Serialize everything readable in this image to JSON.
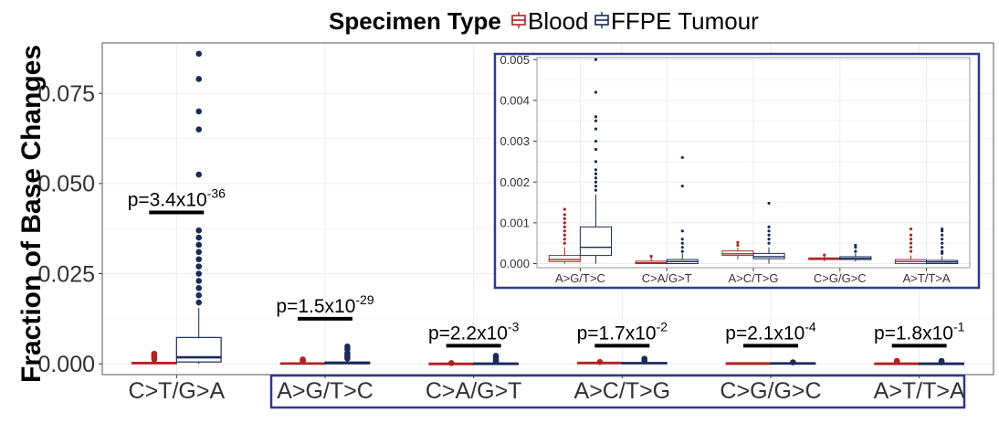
{
  "legend": {
    "title": "Specimen Type",
    "items": [
      {
        "label": "Blood",
        "color": "#b22222"
      },
      {
        "label": "FFPE Tumour",
        "color": "#1b2a5c"
      }
    ]
  },
  "colors": {
    "blood": "#b22222",
    "ffpe": "#1b2a5c",
    "highlight_box": "#2e3a8c",
    "grid": "#ebebeb",
    "panel_border": "#999999"
  },
  "chart_data": [
    {
      "type": "box",
      "ylabel": "Fraction of Base Changes",
      "ylim": [
        -0.003,
        0.089
      ],
      "yticks": [
        0.0,
        0.025,
        0.05,
        0.075
      ],
      "ytick_labels": [
        "0.000",
        "0.025",
        "0.050",
        "0.075"
      ],
      "categories": [
        "C>T/G>A",
        "A>G/T>C",
        "C>A/G>T",
        "A>C/T>G",
        "C>G/G>C",
        "A>T/T>A"
      ],
      "highlighted_categories": [
        "A>G/T>C",
        "C>A/G>T",
        "A>C/T>G",
        "C>G/G>C",
        "A>T/T>A"
      ],
      "pvalues": [
        {
          "base": "3.4x10",
          "exp": "-36"
        },
        {
          "base": "1.5x10",
          "exp": "-29"
        },
        {
          "base": "2.2x10",
          "exp": "-3"
        },
        {
          "base": "1.7x10",
          "exp": "-2"
        },
        {
          "base": "2.1x10",
          "exp": "-4"
        },
        {
          "base": "1.8x10",
          "exp": "-1"
        }
      ],
      "pvalue_prefix": "p=",
      "series": [
        {
          "name": "Blood",
          "boxes": [
            {
              "min": 0.0,
              "q1": 0.0,
              "median": 0.0002,
              "q3": 0.0004,
              "max": 0.0008,
              "outliers": [
                0.0012,
                0.0016,
                0.002,
                0.0024,
                0.0028
              ]
            },
            {
              "min": 0.0,
              "q1": 0.0,
              "median": 0.0001,
              "q3": 0.0002,
              "max": 0.0004,
              "outliers": [
                0.0006,
                0.0009,
                0.0012
              ]
            },
            {
              "min": 0.0,
              "q1": 0.0,
              "median": 2e-05,
              "q3": 6e-05,
              "max": 0.00015,
              "outliers": [
                0.0002
              ]
            },
            {
              "min": 0.0001,
              "q1": 0.0002,
              "median": 0.00025,
              "q3": 0.0003,
              "max": 0.0004,
              "outliers": [
                0.0005
              ]
            },
            {
              "min": 0.0,
              "q1": 0.0001,
              "median": 0.00012,
              "q3": 0.00014,
              "max": 0.00018,
              "outliers": []
            },
            {
              "min": 0.0,
              "q1": 0.0,
              "median": 5e-05,
              "q3": 0.0001,
              "max": 0.0002,
              "outliers": [
                0.0005,
                0.0008
              ]
            }
          ]
        },
        {
          "name": "FFPE Tumour",
          "boxes": [
            {
              "min": 0.0,
              "q1": 0.0005,
              "median": 0.0018,
              "q3": 0.0073,
              "max": 0.0155,
              "outliers": [
                0.017,
                0.019,
                0.021,
                0.023,
                0.025,
                0.027,
                0.029,
                0.031,
                0.033,
                0.035,
                0.037,
                0.0525,
                0.065,
                0.07,
                0.079,
                0.086
              ]
            },
            {
              "min": 0.0,
              "q1": 0.0,
              "median": 0.0002,
              "q3": 0.0005,
              "max": 0.0012,
              "outliers": [
                0.0015,
                0.002,
                0.0025,
                0.003,
                0.004,
                0.0048
              ]
            },
            {
              "min": 0.0,
              "q1": 0.0,
              "median": 5e-05,
              "q3": 0.0001,
              "max": 0.0003,
              "outliers": [
                0.0005,
                0.0008,
                0.0012,
                0.0018,
                0.0022
              ]
            },
            {
              "min": 0.0,
              "q1": 0.0001,
              "median": 0.0002,
              "q3": 0.0003,
              "max": 0.0005,
              "outliers": [
                0.0008,
                0.001,
                0.0014
              ]
            },
            {
              "min": 0.0,
              "q1": 0.0001,
              "median": 0.00012,
              "q3": 0.0002,
              "max": 0.0003,
              "outliers": [
                0.0004
              ]
            },
            {
              "min": 0.0,
              "q1": 0.0,
              "median": 5e-05,
              "q3": 0.0001,
              "max": 0.0002,
              "outliers": [
                0.0004,
                0.0006,
                0.0008
              ]
            }
          ]
        }
      ]
    },
    {
      "type": "box",
      "inset": true,
      "ylim": [
        -0.0001,
        0.00505
      ],
      "yticks": [
        0.0,
        0.001,
        0.002,
        0.003,
        0.004,
        0.005
      ],
      "ytick_labels": [
        "0.000",
        "0.001",
        "0.002",
        "0.003",
        "0.004",
        "0.005"
      ],
      "categories": [
        "A>G/T>C",
        "C>A/G>T",
        "A>C/T>G",
        "C>G/G>C",
        "A>T/T>A"
      ],
      "series": [
        {
          "name": "Blood",
          "boxes": [
            {
              "min": 0.0,
              "q1": 5e-05,
              "median": 0.0001,
              "q3": 0.0002,
              "max": 0.0004,
              "outliers": [
                0.0005,
                0.0006,
                0.0007,
                0.0008,
                0.0009,
                0.001,
                0.0011,
                0.0012,
                0.00133
              ]
            },
            {
              "min": 0.0,
              "q1": 0.0,
              "median": 2e-05,
              "q3": 6e-05,
              "max": 0.00015,
              "outliers": [
                0.00018
              ]
            },
            {
              "min": 0.0001,
              "q1": 0.0002,
              "median": 0.00024,
              "q3": 0.00031,
              "max": 0.0004,
              "outliers": [
                0.00045,
                0.00052
              ]
            },
            {
              "min": 5e-05,
              "q1": 0.0001,
              "median": 0.00012,
              "q3": 0.00014,
              "max": 0.00018,
              "outliers": [
                0.00021
              ]
            },
            {
              "min": 0.0,
              "q1": 0.0,
              "median": 5e-05,
              "q3": 0.0001,
              "max": 0.0002,
              "outliers": [
                0.0003,
                0.0004,
                0.0005,
                0.0006,
                0.0007,
                0.00085
              ]
            }
          ]
        },
        {
          "name": "FFPE Tumour",
          "boxes": [
            {
              "min": 0.0,
              "q1": 0.0002,
              "median": 0.0004,
              "q3": 0.0009,
              "max": 0.0017,
              "outliers": [
                0.0018,
                0.0019,
                0.002,
                0.0021,
                0.0022,
                0.0023,
                0.0025,
                0.0028,
                0.003,
                0.0033,
                0.0035,
                0.0036,
                0.0042,
                0.005
              ]
            },
            {
              "min": 0.0,
              "q1": 0.0,
              "median": 5e-05,
              "q3": 0.0001,
              "max": 0.00025,
              "outliers": [
                0.0003,
                0.0004,
                0.0005,
                0.0006,
                0.0008,
                0.0019,
                0.0026
              ]
            },
            {
              "min": 0.0,
              "q1": 0.00012,
              "median": 0.00017,
              "q3": 0.00025,
              "max": 0.0004,
              "outliers": [
                0.0005,
                0.0006,
                0.0007,
                0.0008,
                0.0009,
                0.00148
              ]
            },
            {
              "min": 5e-05,
              "q1": 0.0001,
              "median": 0.00013,
              "q3": 0.00017,
              "max": 0.00025,
              "outliers": [
                0.0003,
                0.0004,
                0.00045
              ]
            },
            {
              "min": 0.0,
              "q1": 0.0,
              "median": 4e-05,
              "q3": 8e-05,
              "max": 0.00018,
              "outliers": [
                0.00025,
                0.0003,
                0.0004,
                0.0005,
                0.0006,
                0.0007,
                0.0008,
                0.00085
              ]
            }
          ]
        }
      ]
    }
  ]
}
